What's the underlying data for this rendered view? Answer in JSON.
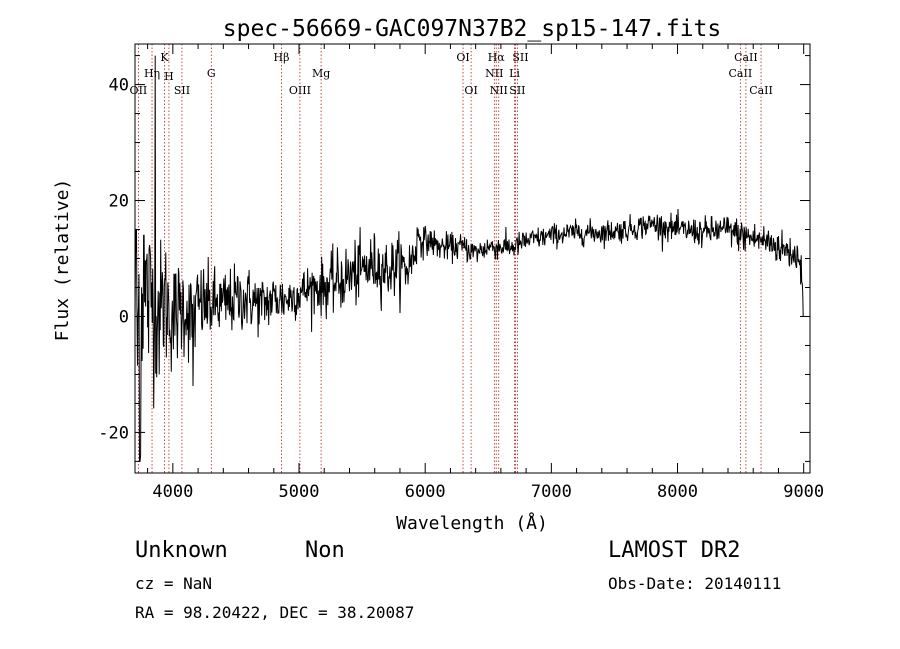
{
  "chart_data": {
    "type": "line",
    "title": "spec-56669-GAC097N37B2_sp15-147.fits",
    "xlabel": "Wavelength (Å)",
    "ylabel": "Flux (relative)",
    "xlim": [
      3700,
      9050
    ],
    "ylim": [
      -27,
      47
    ],
    "xticks": [
      4000,
      5000,
      6000,
      7000,
      8000,
      9000
    ],
    "yticks": [
      -20,
      0,
      20,
      40
    ],
    "grid": false,
    "line_color": "#000000",
    "marker_color": "#b22222",
    "series": [
      {
        "anchors": [
          [
            3705,
            2
          ],
          [
            3720,
            -5
          ],
          [
            3735,
            6
          ],
          [
            3750,
            3
          ],
          [
            3770,
            0
          ],
          [
            3790,
            5
          ],
          [
            3810,
            2
          ],
          [
            3830,
            4
          ],
          [
            3850,
            3
          ],
          [
            3880,
            2
          ],
          [
            3900,
            0
          ],
          [
            3930,
            3
          ],
          [
            3950,
            2
          ],
          [
            3970,
            1
          ],
          [
            4000,
            0
          ],
          [
            4050,
            1
          ],
          [
            4100,
            2
          ],
          [
            4150,
            -1
          ],
          [
            4200,
            2
          ],
          [
            4300,
            2
          ],
          [
            4400,
            2
          ],
          [
            4500,
            3
          ],
          [
            4600,
            3
          ],
          [
            4700,
            2
          ],
          [
            4800,
            3
          ],
          [
            4900,
            3
          ],
          [
            5000,
            4
          ],
          [
            5100,
            5
          ],
          [
            5200,
            5
          ],
          [
            5300,
            6
          ],
          [
            5400,
            7
          ],
          [
            5500,
            8
          ],
          [
            5600,
            9
          ],
          [
            5700,
            8
          ],
          [
            5800,
            9
          ],
          [
            5850,
            8
          ],
          [
            5900,
            10
          ],
          [
            5950,
            14
          ],
          [
            6000,
            13
          ],
          [
            6050,
            13
          ],
          [
            6100,
            12
          ],
          [
            6200,
            12
          ],
          [
            6300,
            12
          ],
          [
            6400,
            11
          ],
          [
            6500,
            12
          ],
          [
            6600,
            12
          ],
          [
            6700,
            12
          ],
          [
            6800,
            13
          ],
          [
            6900,
            13.5
          ],
          [
            7000,
            14
          ],
          [
            7200,
            14.5
          ],
          [
            7400,
            14.5
          ],
          [
            7600,
            15
          ],
          [
            7800,
            16
          ],
          [
            8000,
            15
          ],
          [
            8200,
            14.5
          ],
          [
            8400,
            15
          ],
          [
            8500,
            14
          ],
          [
            8600,
            13.5
          ],
          [
            8700,
            13
          ],
          [
            8800,
            12
          ],
          [
            8900,
            11
          ],
          [
            8980,
            10
          ],
          [
            8990,
            5
          ],
          [
            9000,
            1
          ]
        ],
        "noise": [
          [
            3705,
            11
          ],
          [
            3850,
            9
          ],
          [
            4000,
            6
          ],
          [
            4300,
            4
          ],
          [
            5000,
            2.5
          ],
          [
            5400,
            3.5
          ],
          [
            5900,
            3
          ],
          [
            6000,
            1.5
          ],
          [
            7000,
            1.2
          ],
          [
            8000,
            1.4
          ],
          [
            8600,
            1.8
          ],
          [
            9000,
            2
          ]
        ],
        "spikes": [
          [
            3860,
            45
          ],
          [
            3745,
            -24
          ],
          [
            3738,
            -25
          ],
          [
            4160,
            -12
          ],
          [
            3770,
            14
          ],
          [
            3710,
            15
          ]
        ]
      }
    ],
    "lines": [
      {
        "label": "OII",
        "wavelength": 3727,
        "row": 3,
        "dx": 0
      },
      {
        "label": "Hη",
        "wavelength": 3835,
        "row": 2,
        "dx": 0
      },
      {
        "label": "K",
        "wavelength": 3934,
        "row": 1,
        "dx": 0
      },
      {
        "label": "H",
        "wavelength": 3969,
        "row": 0,
        "dx": 0
      },
      {
        "label": "SII",
        "wavelength": 4072,
        "row": 3,
        "dx": 0
      },
      {
        "label": "G",
        "wavelength": 4305,
        "row": 2,
        "dx": 0
      },
      {
        "label": "Hβ",
        "wavelength": 4861,
        "row": 1,
        "dx": 0
      },
      {
        "label": "OIII",
        "wavelength": 5007,
        "row": 3,
        "dx": 0
      },
      {
        "label": "Mg",
        "wavelength": 5175,
        "row": 2,
        "dx": 0
      },
      {
        "label": "OI",
        "wavelength": 6300,
        "row": 1,
        "dx": 0
      },
      {
        "label": "OI",
        "wavelength": 6364,
        "row": 3,
        "dx": 0
      },
      {
        "label": "NII",
        "wavelength": 6548,
        "row": 2,
        "dx": 0
      },
      {
        "label": "Hα",
        "wavelength": 6563,
        "row": 1,
        "dx": 0
      },
      {
        "label": "NII",
        "wavelength": 6583,
        "row": 3,
        "dx": 0
      },
      {
        "label": "Li",
        "wavelength": 6708,
        "row": 2,
        "dx": 0
      },
      {
        "label": "SII",
        "wavelength": 6716,
        "row": 1,
        "dx": 5
      },
      {
        "label": "SII",
        "wavelength": 6731,
        "row": 3,
        "dx": 0
      },
      {
        "label": "CaII",
        "wavelength": 8498,
        "row": 2,
        "dx": 0
      },
      {
        "label": "CaII",
        "wavelength": 8542,
        "row": 1,
        "dx": 0
      },
      {
        "label": "CaII",
        "wavelength": 8662,
        "row": 3,
        "dx": 0
      }
    ]
  },
  "info": {
    "class": "Unknown",
    "subclass": "Non",
    "survey": "LAMOST DR2",
    "cz": "cz = NaN",
    "obs_date": "Obs-Date: 20140111",
    "coords": "RA =  98.20422, DEC =  38.20087"
  }
}
